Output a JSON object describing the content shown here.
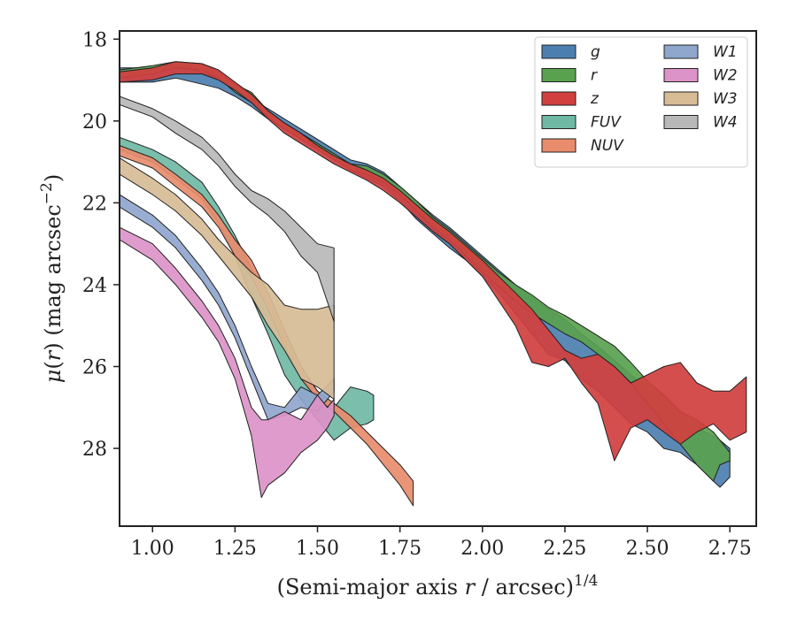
{
  "chart_data": {
    "type": "area",
    "title": "",
    "xlabel": "(Semi-major axis r / arcsec)",
    "xlabel_parts": {
      "pre": "(Semi-major axis ",
      "var": "r",
      "post": " / arcsec)",
      "exp": "1/4"
    },
    "ylabel": "μ(r) (mag arcsec⁻²)",
    "ylabel_parts": {
      "mu": "μ",
      "open": "(",
      "var": "r",
      "close": ")",
      "rest": " (mag arcsec",
      "exp": "−2",
      "end": ")"
    },
    "xlim": [
      0.9,
      2.83
    ],
    "ylim": [
      29.9,
      17.8
    ],
    "y_inverted": true,
    "xticks": [
      "1.00",
      "1.25",
      "1.50",
      "1.75",
      "2.00",
      "2.25",
      "2.50",
      "2.75"
    ],
    "xtick_values": [
      1.0,
      1.25,
      1.5,
      1.75,
      2.0,
      2.25,
      2.5,
      2.75
    ],
    "yticks": [
      "18",
      "20",
      "22",
      "24",
      "26",
      "28"
    ],
    "ytick_values": [
      18,
      20,
      22,
      24,
      26,
      28
    ],
    "grid": false,
    "legend_position": "top-right",
    "legend_columns": 2,
    "series": [
      {
        "name": "g",
        "color": "#4c7fb0",
        "x": [
          0.9,
          1.0,
          1.07,
          1.15,
          1.2,
          1.25,
          1.3,
          1.35,
          1.4,
          1.45,
          1.5,
          1.55,
          1.6,
          1.65,
          1.7,
          1.75,
          1.8,
          1.85,
          1.9,
          1.95,
          2.0,
          2.05,
          2.1,
          2.15,
          2.2,
          2.25,
          2.3,
          2.35,
          2.4,
          2.45,
          2.5,
          2.55,
          2.6,
          2.65,
          2.7,
          2.72,
          2.75
        ],
        "lo": [
          18.7,
          18.7,
          18.6,
          18.8,
          18.95,
          19.2,
          19.45,
          19.7,
          19.95,
          20.2,
          20.45,
          20.7,
          20.95,
          21.05,
          21.25,
          21.6,
          21.95,
          22.3,
          22.6,
          22.95,
          23.3,
          23.65,
          24.0,
          24.3,
          24.6,
          24.85,
          25.2,
          25.5,
          25.85,
          26.2,
          26.55,
          26.9,
          27.3,
          27.5,
          27.7,
          27.8,
          28.0
        ],
        "hi": [
          19.05,
          19.05,
          18.95,
          19.1,
          19.2,
          19.4,
          19.65,
          19.95,
          20.2,
          20.45,
          20.65,
          20.95,
          21.2,
          21.4,
          21.6,
          21.95,
          22.4,
          22.75,
          23.1,
          23.4,
          23.8,
          24.2,
          24.7,
          25.2,
          25.7,
          25.85,
          26.3,
          26.6,
          27.0,
          27.4,
          27.6,
          28.0,
          28.1,
          28.4,
          28.8,
          28.95,
          28.7
        ]
      },
      {
        "name": "r",
        "color": "#59a14f",
        "x": [
          0.9,
          1.0,
          1.07,
          1.15,
          1.2,
          1.25,
          1.3,
          1.35,
          1.4,
          1.45,
          1.5,
          1.55,
          1.6,
          1.65,
          1.7,
          1.75,
          1.8,
          1.85,
          1.9,
          1.95,
          2.0,
          2.05,
          2.1,
          2.15,
          2.2,
          2.25,
          2.3,
          2.35,
          2.4,
          2.45,
          2.5,
          2.55,
          2.6,
          2.65,
          2.7,
          2.72,
          2.75
        ],
        "lo": [
          18.75,
          18.65,
          18.55,
          18.6,
          18.8,
          19.1,
          19.3,
          19.75,
          20.05,
          20.3,
          20.55,
          20.8,
          21.05,
          21.1,
          21.3,
          21.6,
          21.95,
          22.35,
          22.65,
          23.0,
          23.35,
          23.7,
          24.0,
          24.25,
          24.55,
          24.75,
          25.0,
          25.25,
          25.5,
          25.9,
          26.35,
          26.7,
          27.1,
          27.3,
          27.6,
          27.8,
          28.1
        ],
        "hi": [
          18.95,
          18.85,
          18.7,
          18.75,
          18.95,
          19.3,
          19.55,
          19.9,
          20.2,
          20.45,
          20.7,
          20.95,
          21.2,
          21.3,
          21.5,
          21.8,
          22.2,
          22.6,
          22.9,
          23.3,
          23.7,
          24.05,
          24.4,
          24.7,
          24.95,
          25.2,
          25.4,
          25.7,
          26.0,
          26.4,
          26.9,
          27.4,
          27.9,
          28.4,
          28.8,
          28.4,
          28.3
        ]
      },
      {
        "name": "z",
        "color": "#d13f3f",
        "x": [
          0.9,
          1.0,
          1.07,
          1.15,
          1.2,
          1.25,
          1.3,
          1.35,
          1.4,
          1.45,
          1.5,
          1.55,
          1.6,
          1.65,
          1.7,
          1.75,
          1.8,
          1.85,
          1.9,
          1.95,
          2.0,
          2.05,
          2.1,
          2.15,
          2.2,
          2.25,
          2.3,
          2.35,
          2.4,
          2.45,
          2.5,
          2.55,
          2.6,
          2.65,
          2.7,
          2.75,
          2.8
        ],
        "lo": [
          18.8,
          18.7,
          18.55,
          18.6,
          18.75,
          19.05,
          19.35,
          19.75,
          20.05,
          20.3,
          20.6,
          20.85,
          21.05,
          21.2,
          21.4,
          21.7,
          22.05,
          22.4,
          22.7,
          23.05,
          23.4,
          23.8,
          24.2,
          24.6,
          25.1,
          25.6,
          25.8,
          25.7,
          26.0,
          26.4,
          26.2,
          26.0,
          25.9,
          26.4,
          26.6,
          26.6,
          26.25
        ],
        "hi": [
          19.05,
          19.0,
          18.85,
          18.85,
          19.0,
          19.25,
          19.55,
          19.95,
          20.3,
          20.55,
          20.8,
          21.05,
          21.25,
          21.45,
          21.7,
          22.0,
          22.35,
          22.7,
          23.0,
          23.4,
          23.8,
          24.4,
          25.0,
          25.9,
          26.0,
          25.8,
          26.4,
          26.9,
          28.3,
          27.5,
          27.3,
          27.6,
          27.9,
          27.6,
          27.4,
          27.8,
          27.6
        ]
      },
      {
        "name": "FUV",
        "color": "#6fb8a4",
        "x": [
          0.9,
          1.0,
          1.07,
          1.15,
          1.2,
          1.25,
          1.3,
          1.35,
          1.4,
          1.45,
          1.5,
          1.55,
          1.6,
          1.65,
          1.67
        ],
        "lo": [
          20.4,
          20.7,
          21.0,
          21.5,
          22.1,
          22.8,
          23.6,
          24.4,
          25.2,
          26.0,
          26.6,
          27.0,
          26.5,
          26.6,
          26.7
        ],
        "hi": [
          20.7,
          21.0,
          21.4,
          21.9,
          22.5,
          23.3,
          24.3,
          25.2,
          26.2,
          26.8,
          27.3,
          27.8,
          27.5,
          27.4,
          27.3
        ]
      },
      {
        "name": "NUV",
        "color": "#e88c6c",
        "x": [
          0.9,
          1.0,
          1.07,
          1.15,
          1.2,
          1.25,
          1.3,
          1.35,
          1.4,
          1.45,
          1.5,
          1.55,
          1.6,
          1.65,
          1.7,
          1.75,
          1.79
        ],
        "lo": [
          20.6,
          20.9,
          21.3,
          21.8,
          22.3,
          22.9,
          23.4,
          24.2,
          25.1,
          26.0,
          26.6,
          26.9,
          27.2,
          27.6,
          28.0,
          28.4,
          28.8
        ],
        "hi": [
          20.85,
          21.15,
          21.6,
          22.1,
          22.6,
          23.3,
          23.8,
          24.6,
          25.5,
          26.3,
          26.8,
          27.1,
          27.5,
          27.9,
          28.4,
          28.9,
          29.4
        ]
      },
      {
        "name": "W1",
        "color": "#8fa6cd",
        "x": [
          0.9,
          1.0,
          1.07,
          1.15,
          1.2,
          1.25,
          1.3,
          1.35,
          1.4,
          1.45,
          1.5,
          1.55
        ],
        "lo": [
          21.8,
          22.3,
          22.8,
          23.6,
          24.2,
          25.0,
          26.0,
          26.9,
          27.0,
          26.5,
          26.7,
          26.3
        ],
        "hi": [
          22.1,
          22.6,
          23.1,
          23.9,
          24.5,
          25.3,
          26.3,
          27.3,
          27.2,
          27.0,
          27.1,
          26.6
        ]
      },
      {
        "name": "W2",
        "color": "#dc93c8",
        "x": [
          0.9,
          1.0,
          1.07,
          1.15,
          1.2,
          1.25,
          1.3,
          1.33,
          1.35,
          1.4,
          1.45,
          1.5,
          1.53,
          1.55
        ],
        "lo": [
          22.6,
          23.0,
          23.6,
          24.4,
          25.0,
          25.8,
          27.0,
          27.3,
          27.3,
          27.1,
          27.3,
          26.7,
          27.0,
          26.8
        ],
        "hi": [
          22.9,
          23.4,
          24.0,
          24.8,
          25.4,
          26.3,
          27.7,
          29.2,
          28.9,
          28.6,
          28.1,
          27.8,
          27.5,
          27.2
        ]
      },
      {
        "name": "W3",
        "color": "#d7bc96",
        "x": [
          0.9,
          1.0,
          1.07,
          1.15,
          1.2,
          1.25,
          1.3,
          1.35,
          1.4,
          1.45,
          1.5,
          1.55
        ],
        "lo": [
          20.9,
          21.4,
          21.8,
          22.4,
          22.9,
          23.3,
          23.7,
          24.0,
          24.5,
          24.6,
          24.6,
          24.5
        ],
        "hi": [
          21.3,
          21.8,
          22.2,
          22.8,
          23.3,
          23.8,
          24.3,
          25.0,
          25.6,
          26.3,
          26.5,
          26.8
        ]
      },
      {
        "name": "W4",
        "color": "#b8b8b8",
        "x": [
          0.9,
          1.0,
          1.07,
          1.15,
          1.2,
          1.25,
          1.3,
          1.35,
          1.4,
          1.45,
          1.5,
          1.55
        ],
        "lo": [
          19.4,
          19.7,
          20.0,
          20.4,
          20.8,
          21.3,
          21.7,
          21.9,
          22.2,
          22.6,
          23.0,
          23.1
        ],
        "hi": [
          19.6,
          19.9,
          20.3,
          20.7,
          21.1,
          21.6,
          22.0,
          22.3,
          22.7,
          23.3,
          23.7,
          24.9
        ]
      }
    ]
  }
}
